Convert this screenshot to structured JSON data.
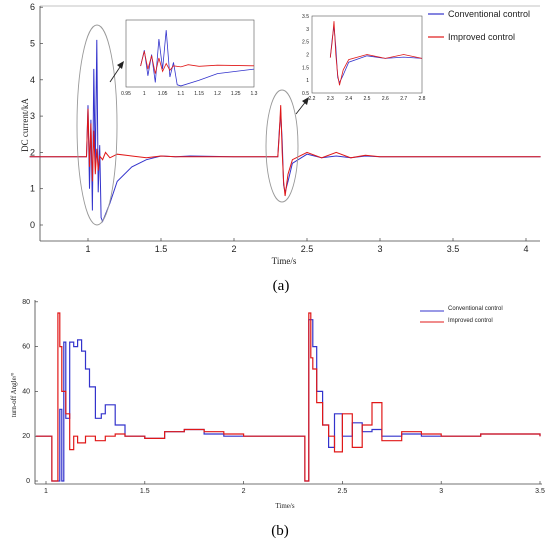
{
  "colors": {
    "conventional": "#3333cc",
    "improved": "#e01818",
    "axis": "#444444",
    "ellipse": "#999999"
  },
  "chart_data": [
    {
      "type": "line",
      "caption": "(a)",
      "xlabel": "Time/s",
      "ylabel": "DC current/kA",
      "xlim": [
        0.6,
        4.1
      ],
      "ylim": [
        -0.5,
        6
      ],
      "xticks": [
        "1",
        "1.5",
        "2",
        "2.5",
        "3",
        "3.5",
        "4"
      ],
      "yticks": [
        "0",
        "1",
        "2",
        "3",
        "4",
        "5",
        "6"
      ],
      "legend": [
        "Conventional control",
        "Improved control"
      ],
      "series": [
        {
          "name": "Conventional control",
          "x": [
            0.6,
            0.99,
            1.0,
            1.01,
            1.02,
            1.03,
            1.04,
            1.05,
            1.06,
            1.07,
            1.08,
            1.09,
            1.1,
            1.15,
            1.2,
            1.3,
            1.4,
            1.5,
            1.6,
            1.7,
            2.0,
            2.3,
            2.31,
            2.32,
            2.33,
            2.34,
            2.35,
            2.37,
            2.4,
            2.5,
            2.6,
            2.7,
            2.8,
            2.9,
            3.0,
            4.1
          ],
          "y": [
            1.88,
            1.88,
            3.3,
            1.0,
            2.9,
            0.4,
            4.3,
            1.6,
            5.1,
            0.9,
            2.2,
            0.2,
            0.1,
            0.6,
            1.2,
            1.6,
            1.8,
            1.9,
            1.88,
            1.9,
            1.88,
            1.88,
            2.6,
            3.1,
            2.3,
            1.1,
            0.9,
            1.2,
            1.7,
            1.95,
            1.85,
            1.9,
            1.85,
            1.9,
            1.88,
            1.88
          ]
        },
        {
          "name": "Improved control",
          "x": [
            0.6,
            0.99,
            1.0,
            1.01,
            1.02,
            1.03,
            1.04,
            1.05,
            1.06,
            1.07,
            1.08,
            1.1,
            1.12,
            1.15,
            1.2,
            1.3,
            1.4,
            1.5,
            1.6,
            2.0,
            2.3,
            2.31,
            2.32,
            2.33,
            2.34,
            2.35,
            2.37,
            2.4,
            2.5,
            2.6,
            2.7,
            2.8,
            2.9,
            3.0,
            4.1
          ],
          "y": [
            1.88,
            1.88,
            3.2,
            1.6,
            2.8,
            1.2,
            2.6,
            1.4,
            2.1,
            1.5,
            1.9,
            1.8,
            2.0,
            1.85,
            1.95,
            1.9,
            1.85,
            1.9,
            1.88,
            1.88,
            1.88,
            2.5,
            3.3,
            2.0,
            1.2,
            0.8,
            1.4,
            1.8,
            2.0,
            1.85,
            2.0,
            1.85,
            1.92,
            1.88,
            1.88
          ]
        }
      ],
      "insets": [
        {
          "xticks": [
            "0.95",
            "1",
            "1.05",
            "1.1",
            "1.15",
            "1.2",
            "1.25",
            "1.3"
          ],
          "xlim": [
            0.95,
            1.3
          ]
        },
        {
          "xticks": [
            "2.2",
            "2.3",
            "2.4",
            "2.5",
            "2.6",
            "2.7",
            "2.8"
          ],
          "yticks": [
            "0.5",
            "1",
            "1.5",
            "2",
            "2.5",
            "3",
            "3.5"
          ],
          "xlim": [
            2.2,
            2.8
          ],
          "ylim": [
            0.5,
            3.5
          ]
        }
      ]
    },
    {
      "type": "line",
      "caption": "(b)",
      "xlabel": "Time/s",
      "ylabel": "turn-off Angle/°",
      "xlim": [
        0.95,
        3.5
      ],
      "ylim": [
        -2,
        80
      ],
      "xticks": [
        "1",
        "1.5",
        "2",
        "2.5",
        "3",
        "3.5"
      ],
      "yticks": [
        "0",
        "20",
        "40",
        "60",
        "80"
      ],
      "legend": [
        "Conventional control",
        "Improved control"
      ],
      "series": [
        {
          "name": "Conventional control",
          "x": [
            0.95,
            1.02,
            1.03,
            1.06,
            1.07,
            1.08,
            1.09,
            1.1,
            1.12,
            1.14,
            1.16,
            1.18,
            1.2,
            1.22,
            1.25,
            1.28,
            1.3,
            1.35,
            1.4,
            1.5,
            1.6,
            1.7,
            1.8,
            1.9,
            2.0,
            2.3,
            2.31,
            2.33,
            2.35,
            2.37,
            2.4,
            2.43,
            2.46,
            2.5,
            2.55,
            2.6,
            2.65,
            2.7,
            2.8,
            2.9,
            3.0,
            3.2,
            3.5
          ],
          "y": [
            20,
            20,
            0,
            0,
            32,
            0,
            62,
            28,
            62,
            60,
            63,
            58,
            50,
            42,
            28,
            30,
            34,
            25,
            20,
            19,
            22,
            23,
            21,
            20,
            20,
            20,
            0,
            72,
            60,
            40,
            25,
            15,
            30,
            20,
            26,
            22,
            23,
            20,
            21,
            20,
            20,
            21,
            20
          ]
        },
        {
          "name": "Improved control",
          "x": [
            0.95,
            1.02,
            1.03,
            1.05,
            1.06,
            1.07,
            1.08,
            1.1,
            1.12,
            1.14,
            1.16,
            1.2,
            1.25,
            1.3,
            1.35,
            1.4,
            1.5,
            1.6,
            1.7,
            1.8,
            1.9,
            2.0,
            2.3,
            2.31,
            2.33,
            2.34,
            2.35,
            2.37,
            2.4,
            2.43,
            2.46,
            2.5,
            2.55,
            2.6,
            2.65,
            2.7,
            2.8,
            2.9,
            3.0,
            3.2,
            3.5
          ],
          "y": [
            20,
            20,
            0,
            0,
            75,
            60,
            40,
            30,
            14,
            20,
            17,
            20,
            18,
            20,
            21,
            20,
            19,
            22,
            23,
            22,
            21,
            20,
            20,
            0,
            75,
            55,
            50,
            35,
            25,
            20,
            13,
            30,
            15,
            25,
            35,
            18,
            22,
            21,
            20,
            21,
            20
          ]
        }
      ]
    }
  ]
}
